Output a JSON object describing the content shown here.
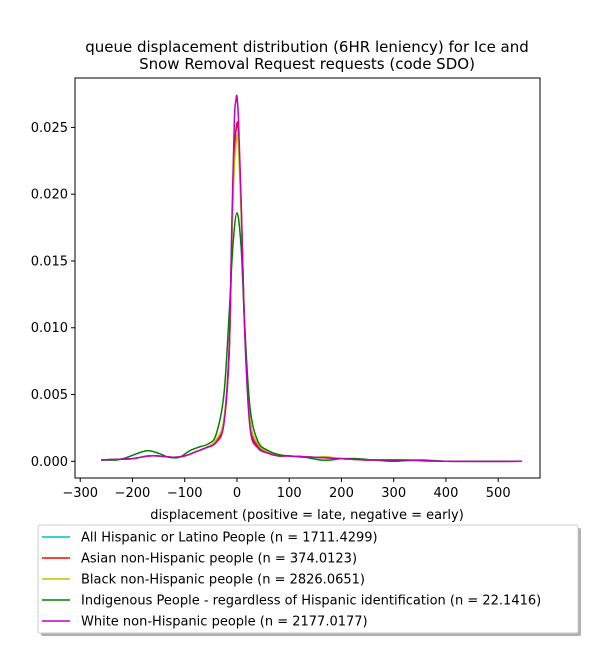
{
  "chart_data": {
    "type": "line",
    "title_lines": [
      "queue displacement distribution (6HR leniency) for Ice and",
      "Snow Removal Request  requests (code SDO)"
    ],
    "xlabel": "displacement (positive = late, negative = early)",
    "ylabel": "",
    "xlim": [
      -310,
      580
    ],
    "ylim": [
      -0.00125,
      0.0287
    ],
    "xticks": [
      -300,
      -200,
      -100,
      0,
      100,
      200,
      300,
      400,
      500
    ],
    "xtick_labels": [
      "−300",
      "−200",
      "−100",
      "0",
      "100",
      "200",
      "300",
      "400",
      "500"
    ],
    "yticks": [
      0.0,
      0.005,
      0.01,
      0.015,
      0.02,
      0.025
    ],
    "ytick_labels": [
      "0.000",
      "0.005",
      "0.010",
      "0.015",
      "0.020",
      "0.025"
    ],
    "grid": false,
    "legend_position": "below plot",
    "series": [
      {
        "name": "All Hispanic or Latino People (n = 1711.4299)",
        "color": "#00bfbf",
        "x": [
          -260,
          -230,
          -200,
          -170,
          -150,
          -120,
          -100,
          -80,
          -60,
          -40,
          -25,
          -15,
          -10,
          -5,
          0,
          3,
          8,
          15,
          25,
          40,
          60,
          80,
          100,
          150,
          200,
          250,
          300,
          400,
          545
        ],
        "y": [
          0.0001,
          0.00015,
          0.0002,
          0.0004,
          0.0004,
          0.0003,
          0.0004,
          0.0007,
          0.001,
          0.0015,
          0.003,
          0.008,
          0.016,
          0.023,
          0.0252,
          0.0245,
          0.019,
          0.01,
          0.003,
          0.0012,
          0.0007,
          0.0004,
          0.0004,
          0.0003,
          0.0002,
          0.0001,
          0.0001,
          0.0,
          0.0
        ]
      },
      {
        "name": "Asian non-Hispanic people (n = 374.0123)",
        "color": "#ff0000",
        "x": [
          -260,
          -230,
          -200,
          -170,
          -150,
          -120,
          -100,
          -80,
          -60,
          -40,
          -25,
          -15,
          -10,
          -5,
          0,
          3,
          8,
          15,
          25,
          40,
          60,
          80,
          100,
          150,
          200,
          250,
          300,
          400,
          545
        ],
        "y": [
          0.0001,
          0.00015,
          0.0002,
          0.0004,
          0.0004,
          0.0003,
          0.0004,
          0.0007,
          0.001,
          0.0015,
          0.003,
          0.008,
          0.0165,
          0.0232,
          0.0253,
          0.0245,
          0.019,
          0.0098,
          0.0028,
          0.0011,
          0.0006,
          0.0004,
          0.0004,
          0.0003,
          0.0002,
          0.0001,
          0.0001,
          0.0,
          0.0
        ]
      },
      {
        "name": "Black non-Hispanic people (n = 2826.0651)",
        "color": "#bfbf00",
        "x": [
          -260,
          -230,
          -200,
          -170,
          -150,
          -120,
          -100,
          -80,
          -60,
          -40,
          -25,
          -15,
          -10,
          -5,
          0,
          3,
          8,
          15,
          25,
          40,
          60,
          80,
          100,
          150,
          170,
          200,
          250,
          300,
          400,
          545
        ],
        "y": [
          0.0001,
          0.00015,
          0.0002,
          0.0004,
          0.0004,
          0.0003,
          0.0004,
          0.0007,
          0.001,
          0.0016,
          0.0032,
          0.0085,
          0.0165,
          0.022,
          0.0243,
          0.0236,
          0.0185,
          0.01,
          0.0032,
          0.0013,
          0.0007,
          0.0004,
          0.0004,
          0.0003,
          0.00035,
          0.0002,
          0.0001,
          0.0001,
          0.0,
          0.0
        ]
      },
      {
        "name": "Indigenous People - regardless of Hispanic identification (n = 22.1416)",
        "color": "#008000",
        "x": [
          -260,
          -230,
          -210,
          -190,
          -170,
          -150,
          -130,
          -110,
          -90,
          -70,
          -55,
          -40,
          -25,
          -15,
          -8,
          0,
          8,
          15,
          25,
          40,
          60,
          80,
          100,
          130,
          160,
          180,
          200,
          230,
          260,
          300,
          350,
          400,
          450,
          545
        ],
        "y": [
          0.0001,
          0.0001,
          0.0003,
          0.0006,
          0.0008,
          0.0006,
          0.0003,
          0.0003,
          0.0008,
          0.0011,
          0.0013,
          0.002,
          0.005,
          0.011,
          0.016,
          0.0186,
          0.016,
          0.01,
          0.004,
          0.0015,
          0.0008,
          0.0005,
          0.0004,
          0.0003,
          0.0001,
          0.0001,
          0.0002,
          0.0002,
          0.0001,
          0.0,
          0.0001,
          0.0,
          0.0,
          0.0
        ]
      },
      {
        "name": "White non-Hispanic people (n = 2177.0177)",
        "color": "#bf00bf",
        "x": [
          -260,
          -230,
          -200,
          -170,
          -150,
          -120,
          -100,
          -80,
          -60,
          -40,
          -25,
          -15,
          -10,
          -5,
          -2,
          0,
          3,
          8,
          15,
          25,
          40,
          60,
          80,
          100,
          150,
          200,
          250,
          300,
          330,
          400,
          545
        ],
        "y": [
          0.0001,
          0.00015,
          0.0002,
          0.0004,
          0.0004,
          0.0003,
          0.0004,
          0.0007,
          0.001,
          0.0014,
          0.0028,
          0.0085,
          0.0175,
          0.0255,
          0.027,
          0.0273,
          0.0255,
          0.0195,
          0.0095,
          0.0025,
          0.001,
          0.0006,
          0.0004,
          0.0004,
          0.0003,
          0.0002,
          0.0001,
          0.0001,
          0.0001,
          0.0,
          0.0
        ]
      }
    ]
  }
}
